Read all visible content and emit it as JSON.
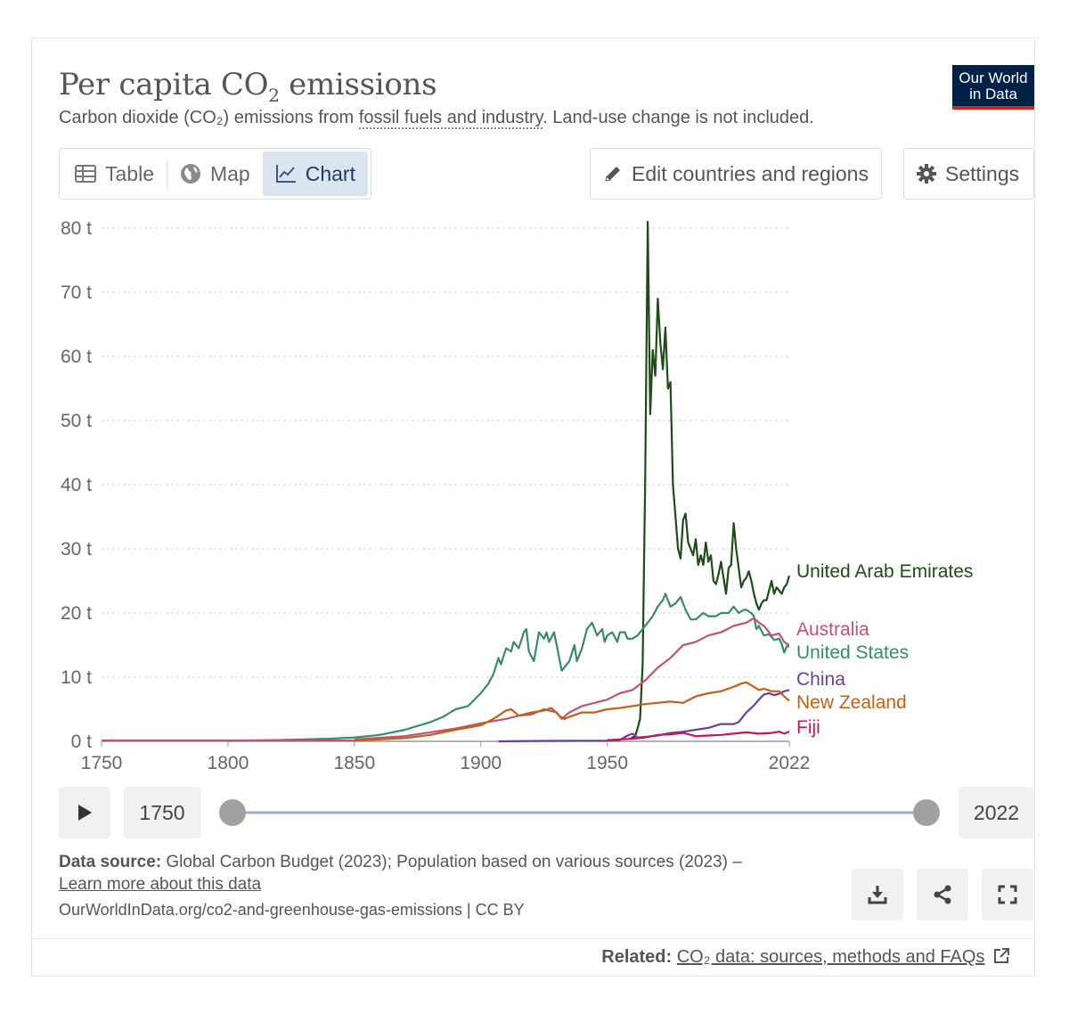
{
  "header": {
    "title_main": "Per capita CO",
    "title_sub": "2",
    "title_end": " emissions",
    "subtitle_pre": "Carbon dioxide (CO₂) emissions from ",
    "subtitle_link": "fossil fuels and industry",
    "subtitle_post": ". Land-use change is not included.",
    "logo_line1": "Our World",
    "logo_line2": "in Data"
  },
  "tabs": [
    {
      "label": "Table",
      "icon": "table-icon"
    },
    {
      "label": "Map",
      "icon": "globe-icon"
    },
    {
      "label": "Chart",
      "icon": "line-chart-icon",
      "active": true
    }
  ],
  "buttons": {
    "edit_label": "Edit countries and regions",
    "settings_label": "Settings"
  },
  "timeline": {
    "start_label": "1750",
    "end_label": "2022",
    "start_value": 1750,
    "end_value": 2022
  },
  "footer": {
    "source_label": "Data source:",
    "source_text": " Global Carbon Budget (2023); Population based on various sources (2023) – ",
    "source_link": "Learn more about this data",
    "url": "OurWorldInData.org/co2-and-greenhouse-gas-emissions | CC BY",
    "related_label": "Related:",
    "related_link": "CO₂ data: sources, methods and FAQs"
  },
  "chart_data": {
    "type": "line",
    "title": "Per capita CO₂ emissions",
    "ylim": [
      0,
      80
    ],
    "xlim": [
      1750,
      2022
    ],
    "y_ticks": [
      0,
      10,
      20,
      30,
      40,
      50,
      60,
      70,
      80
    ],
    "y_tick_labels": [
      "0 t",
      "10 t",
      "20 t",
      "30 t",
      "40 t",
      "50 t",
      "60 t",
      "70 t",
      "80 t"
    ],
    "x_ticks": [
      1750,
      1800,
      1850,
      1900,
      1950,
      2022
    ],
    "x_tick_labels": [
      "1750",
      "1800",
      "1850",
      "1900",
      "1950",
      "2022"
    ],
    "grid": true,
    "series": [
      {
        "name": "United Arab Emirates",
        "color": "#1f4a1a",
        "x": [
          1959,
          1960,
          1961,
          1962,
          1963,
          1964,
          1965,
          1966,
          1967,
          1968,
          1969,
          1970,
          1971,
          1972,
          1973,
          1974,
          1975,
          1976,
          1977,
          1978,
          1979,
          1980,
          1981,
          1982,
          1983,
          1984,
          1985,
          1986,
          1987,
          1988,
          1989,
          1990,
          1991,
          1992,
          1993,
          1994,
          1995,
          1996,
          1997,
          1998,
          1999,
          2000,
          2001,
          2002,
          2003,
          2004,
          2005,
          2006,
          2007,
          2008,
          2009,
          2010,
          2011,
          2012,
          2013,
          2014,
          2015,
          2016,
          2017,
          2018,
          2019,
          2020,
          2021,
          2022
        ],
        "y": [
          0.4,
          0.6,
          0.8,
          2.0,
          3.5,
          12.0,
          40.0,
          81.0,
          51.0,
          61.0,
          57.0,
          69.0,
          62.0,
          58.0,
          64.5,
          55.0,
          56.0,
          40.0,
          35.0,
          30.0,
          28.5,
          34.5,
          35.5,
          31.0,
          30.0,
          29.0,
          31.5,
          27.5,
          29.0,
          27.5,
          31.0,
          28.0,
          29.0,
          25.0,
          24.5,
          26.0,
          28.0,
          25.5,
          23.0,
          27.0,
          27.5,
          34.0,
          30.0,
          27.0,
          24.0,
          25.0,
          25.5,
          26.5,
          25.0,
          23.0,
          21.5,
          20.5,
          21.5,
          22.0,
          22.0,
          23.5,
          25.0,
          23.0,
          24.0,
          23.5,
          23.0,
          24.0,
          24.5,
          25.8
        ]
      },
      {
        "name": "United States",
        "color": "#3a8a6a",
        "x": [
          1800,
          1820,
          1840,
          1850,
          1860,
          1870,
          1880,
          1885,
          1890,
          1895,
          1900,
          1903,
          1905,
          1907,
          1908,
          1910,
          1912,
          1913,
          1915,
          1917,
          1918,
          1919,
          1921,
          1923,
          1925,
          1926,
          1927,
          1929,
          1930,
          1932,
          1933,
          1935,
          1937,
          1938,
          1940,
          1942,
          1944,
          1946,
          1948,
          1949,
          1950,
          1952,
          1954,
          1955,
          1957,
          1958,
          1960,
          1962,
          1964,
          1966,
          1968,
          1970,
          1972,
          1973,
          1975,
          1977,
          1979,
          1981,
          1983,
          1985,
          1988,
          1990,
          1993,
          1995,
          1998,
          2000,
          2002,
          2004,
          2005,
          2007,
          2008,
          2009,
          2010,
          2012,
          2014,
          2016,
          2018,
          2019,
          2020,
          2021,
          2022
        ],
        "y": [
          0.1,
          0.2,
          0.4,
          0.6,
          1.0,
          1.8,
          3.0,
          3.8,
          5.0,
          5.5,
          7.5,
          9.0,
          10.5,
          13.0,
          12.0,
          14.5,
          14.0,
          15.5,
          14.5,
          17.0,
          17.5,
          14.0,
          12.5,
          17.0,
          16.0,
          17.0,
          15.5,
          17.0,
          15.0,
          11.0,
          11.5,
          12.5,
          15.0,
          12.5,
          14.5,
          17.5,
          18.5,
          16.5,
          17.5,
          15.5,
          16.5,
          17.0,
          15.5,
          17.0,
          17.0,
          16.0,
          16.0,
          16.5,
          17.5,
          18.5,
          19.5,
          21.0,
          22.0,
          23.0,
          21.0,
          21.5,
          22.5,
          20.5,
          19.0,
          19.0,
          20.0,
          19.5,
          19.5,
          20.0,
          20.0,
          21.0,
          20.0,
          20.5,
          20.5,
          20.0,
          19.5,
          17.5,
          18.0,
          16.5,
          16.7,
          15.8,
          16.0,
          15.2,
          13.8,
          14.8,
          14.8
        ]
      },
      {
        "name": "Australia",
        "color": "#c0546e",
        "x": [
          1850,
          1870,
          1890,
          1900,
          1910,
          1915,
          1920,
          1925,
          1930,
          1932,
          1935,
          1940,
          1945,
          1950,
          1955,
          1960,
          1965,
          1970,
          1975,
          1980,
          1985,
          1990,
          1995,
          2000,
          2005,
          2008,
          2010,
          2012,
          2015,
          2018,
          2020,
          2021,
          2022
        ],
        "y": [
          0.3,
          0.8,
          2.0,
          2.8,
          3.5,
          4.0,
          4.2,
          5.0,
          4.5,
          3.5,
          4.5,
          5.5,
          6.0,
          6.5,
          7.5,
          8.0,
          9.5,
          11.5,
          13.0,
          15.0,
          15.5,
          16.5,
          17.0,
          18.0,
          18.5,
          19.2,
          18.5,
          18.0,
          16.5,
          16.8,
          15.5,
          15.2,
          15.0
        ]
      },
      {
        "name": "China",
        "color": "#6b3fa0",
        "x": [
          1907,
          1920,
          1940,
          1950,
          1955,
          1958,
          1960,
          1962,
          1965,
          1970,
          1975,
          1980,
          1985,
          1990,
          1995,
          2000,
          2002,
          2005,
          2008,
          2010,
          2012,
          2014,
          2016,
          2018,
          2020,
          2022
        ],
        "y": [
          0.0,
          0.05,
          0.1,
          0.1,
          0.2,
          0.9,
          1.2,
          0.6,
          0.7,
          0.9,
          1.3,
          1.5,
          1.8,
          2.1,
          2.7,
          2.7,
          3.0,
          4.5,
          5.6,
          6.5,
          7.3,
          7.5,
          7.2,
          7.4,
          7.8,
          8.0
        ]
      },
      {
        "name": "New Zealand",
        "color": "#c0611a",
        "x": [
          1850,
          1870,
          1880,
          1890,
          1900,
          1905,
          1910,
          1912,
          1915,
          1920,
          1925,
          1928,
          1931,
          1933,
          1935,
          1940,
          1945,
          1950,
          1955,
          1960,
          1965,
          1970,
          1975,
          1980,
          1985,
          1990,
          1995,
          2000,
          2003,
          2005,
          2008,
          2010,
          2012,
          2015,
          2018,
          2020,
          2022
        ],
        "y": [
          0.1,
          0.5,
          1.0,
          1.8,
          2.5,
          3.5,
          4.8,
          5.0,
          4.0,
          4.5,
          4.8,
          5.2,
          4.0,
          3.5,
          3.8,
          4.5,
          4.5,
          5.0,
          5.2,
          5.5,
          5.8,
          6.0,
          6.2,
          6.0,
          7.0,
          7.5,
          7.8,
          8.5,
          9.0,
          9.2,
          8.5,
          8.0,
          8.2,
          7.8,
          7.8,
          7.0,
          6.3
        ]
      },
      {
        "name": "Fiji",
        "color": "#c2185b",
        "x": [
          1950,
          1955,
          1960,
          1965,
          1970,
          1975,
          1980,
          1985,
          1990,
          1995,
          2000,
          2005,
          2010,
          2015,
          2018,
          2020,
          2022
        ],
        "y": [
          0.2,
          0.3,
          0.4,
          0.6,
          1.0,
          1.1,
          1.3,
          0.8,
          0.9,
          1.0,
          1.2,
          1.4,
          1.2,
          1.3,
          1.5,
          1.2,
          1.5
        ]
      }
    ]
  }
}
